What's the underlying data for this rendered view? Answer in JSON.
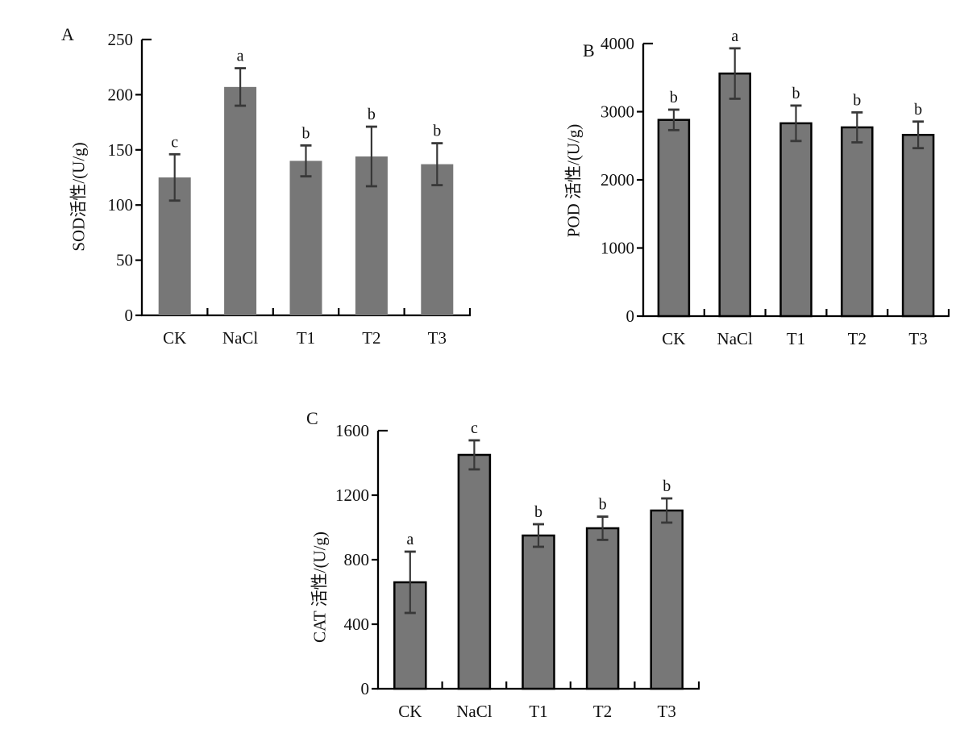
{
  "figure": {
    "background": "#ffffff",
    "bar_fill": "#777777",
    "bar_border_color": "#000000",
    "error_bar_color": "#383838",
    "axis_color": "#000000",
    "text_color": "#111111"
  },
  "chart_data": [
    {
      "type": "bar",
      "panel_label": "A",
      "title": "",
      "xlabel": "",
      "ylabel": "SOD活性/(U/g)",
      "ylim": [
        0,
        250
      ],
      "yticks": [
        0,
        50,
        100,
        150,
        200,
        250
      ],
      "categories": [
        "CK",
        "NaCl",
        "T1",
        "T2",
        "T3"
      ],
      "values": [
        125,
        207,
        140,
        144,
        137
      ],
      "errors": [
        21,
        17,
        14,
        27,
        19
      ],
      "sig_letters": [
        "c",
        "a",
        "b",
        "b",
        "b"
      ],
      "bar_border": false,
      "grid": false,
      "legend": "none"
    },
    {
      "type": "bar",
      "panel_label": "B",
      "title": "",
      "xlabel": "",
      "ylabel": "POD 活性/(U/g)",
      "ylim": [
        0,
        4000
      ],
      "yticks": [
        0,
        1000,
        2000,
        3000,
        4000
      ],
      "categories": [
        "CK",
        "NaCl",
        "T1",
        "T2",
        "T3"
      ],
      "values": [
        2880,
        3560,
        2830,
        2770,
        2660
      ],
      "errors": [
        150,
        370,
        260,
        220,
        195
      ],
      "sig_letters": [
        "b",
        "a",
        "b",
        "b",
        "b"
      ],
      "bar_border": true,
      "grid": false,
      "legend": "none"
    },
    {
      "type": "bar",
      "panel_label": "C",
      "title": "",
      "xlabel": "",
      "ylabel": "CAT 活性/(U/g)",
      "ylim": [
        0,
        1600
      ],
      "yticks": [
        0,
        400,
        800,
        1200,
        1600
      ],
      "categories": [
        "CK",
        "NaCl",
        "T1",
        "T2",
        "T3"
      ],
      "values": [
        660,
        1450,
        950,
        995,
        1105
      ],
      "errors": [
        190,
        90,
        70,
        72,
        75
      ],
      "sig_letters": [
        "a",
        "c",
        "b",
        "b",
        "b"
      ],
      "bar_border": true,
      "grid": false,
      "legend": "none"
    }
  ]
}
